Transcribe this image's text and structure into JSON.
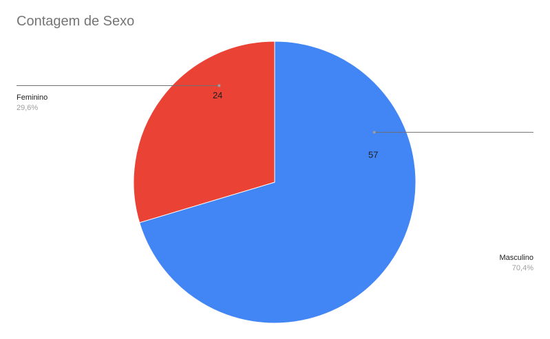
{
  "chart_data": {
    "type": "pie",
    "title": "Contagem de Sexo",
    "slices": [
      {
        "name": "Masculino",
        "value": 57,
        "percent_label": "70,4%",
        "color": "#4285f4"
      },
      {
        "name": "Feminino",
        "value": 24,
        "percent_label": "29,6%",
        "color": "#ea4335"
      }
    ],
    "start_angle_deg": 0,
    "direction": "clockwise",
    "legend_position": "callouts"
  }
}
